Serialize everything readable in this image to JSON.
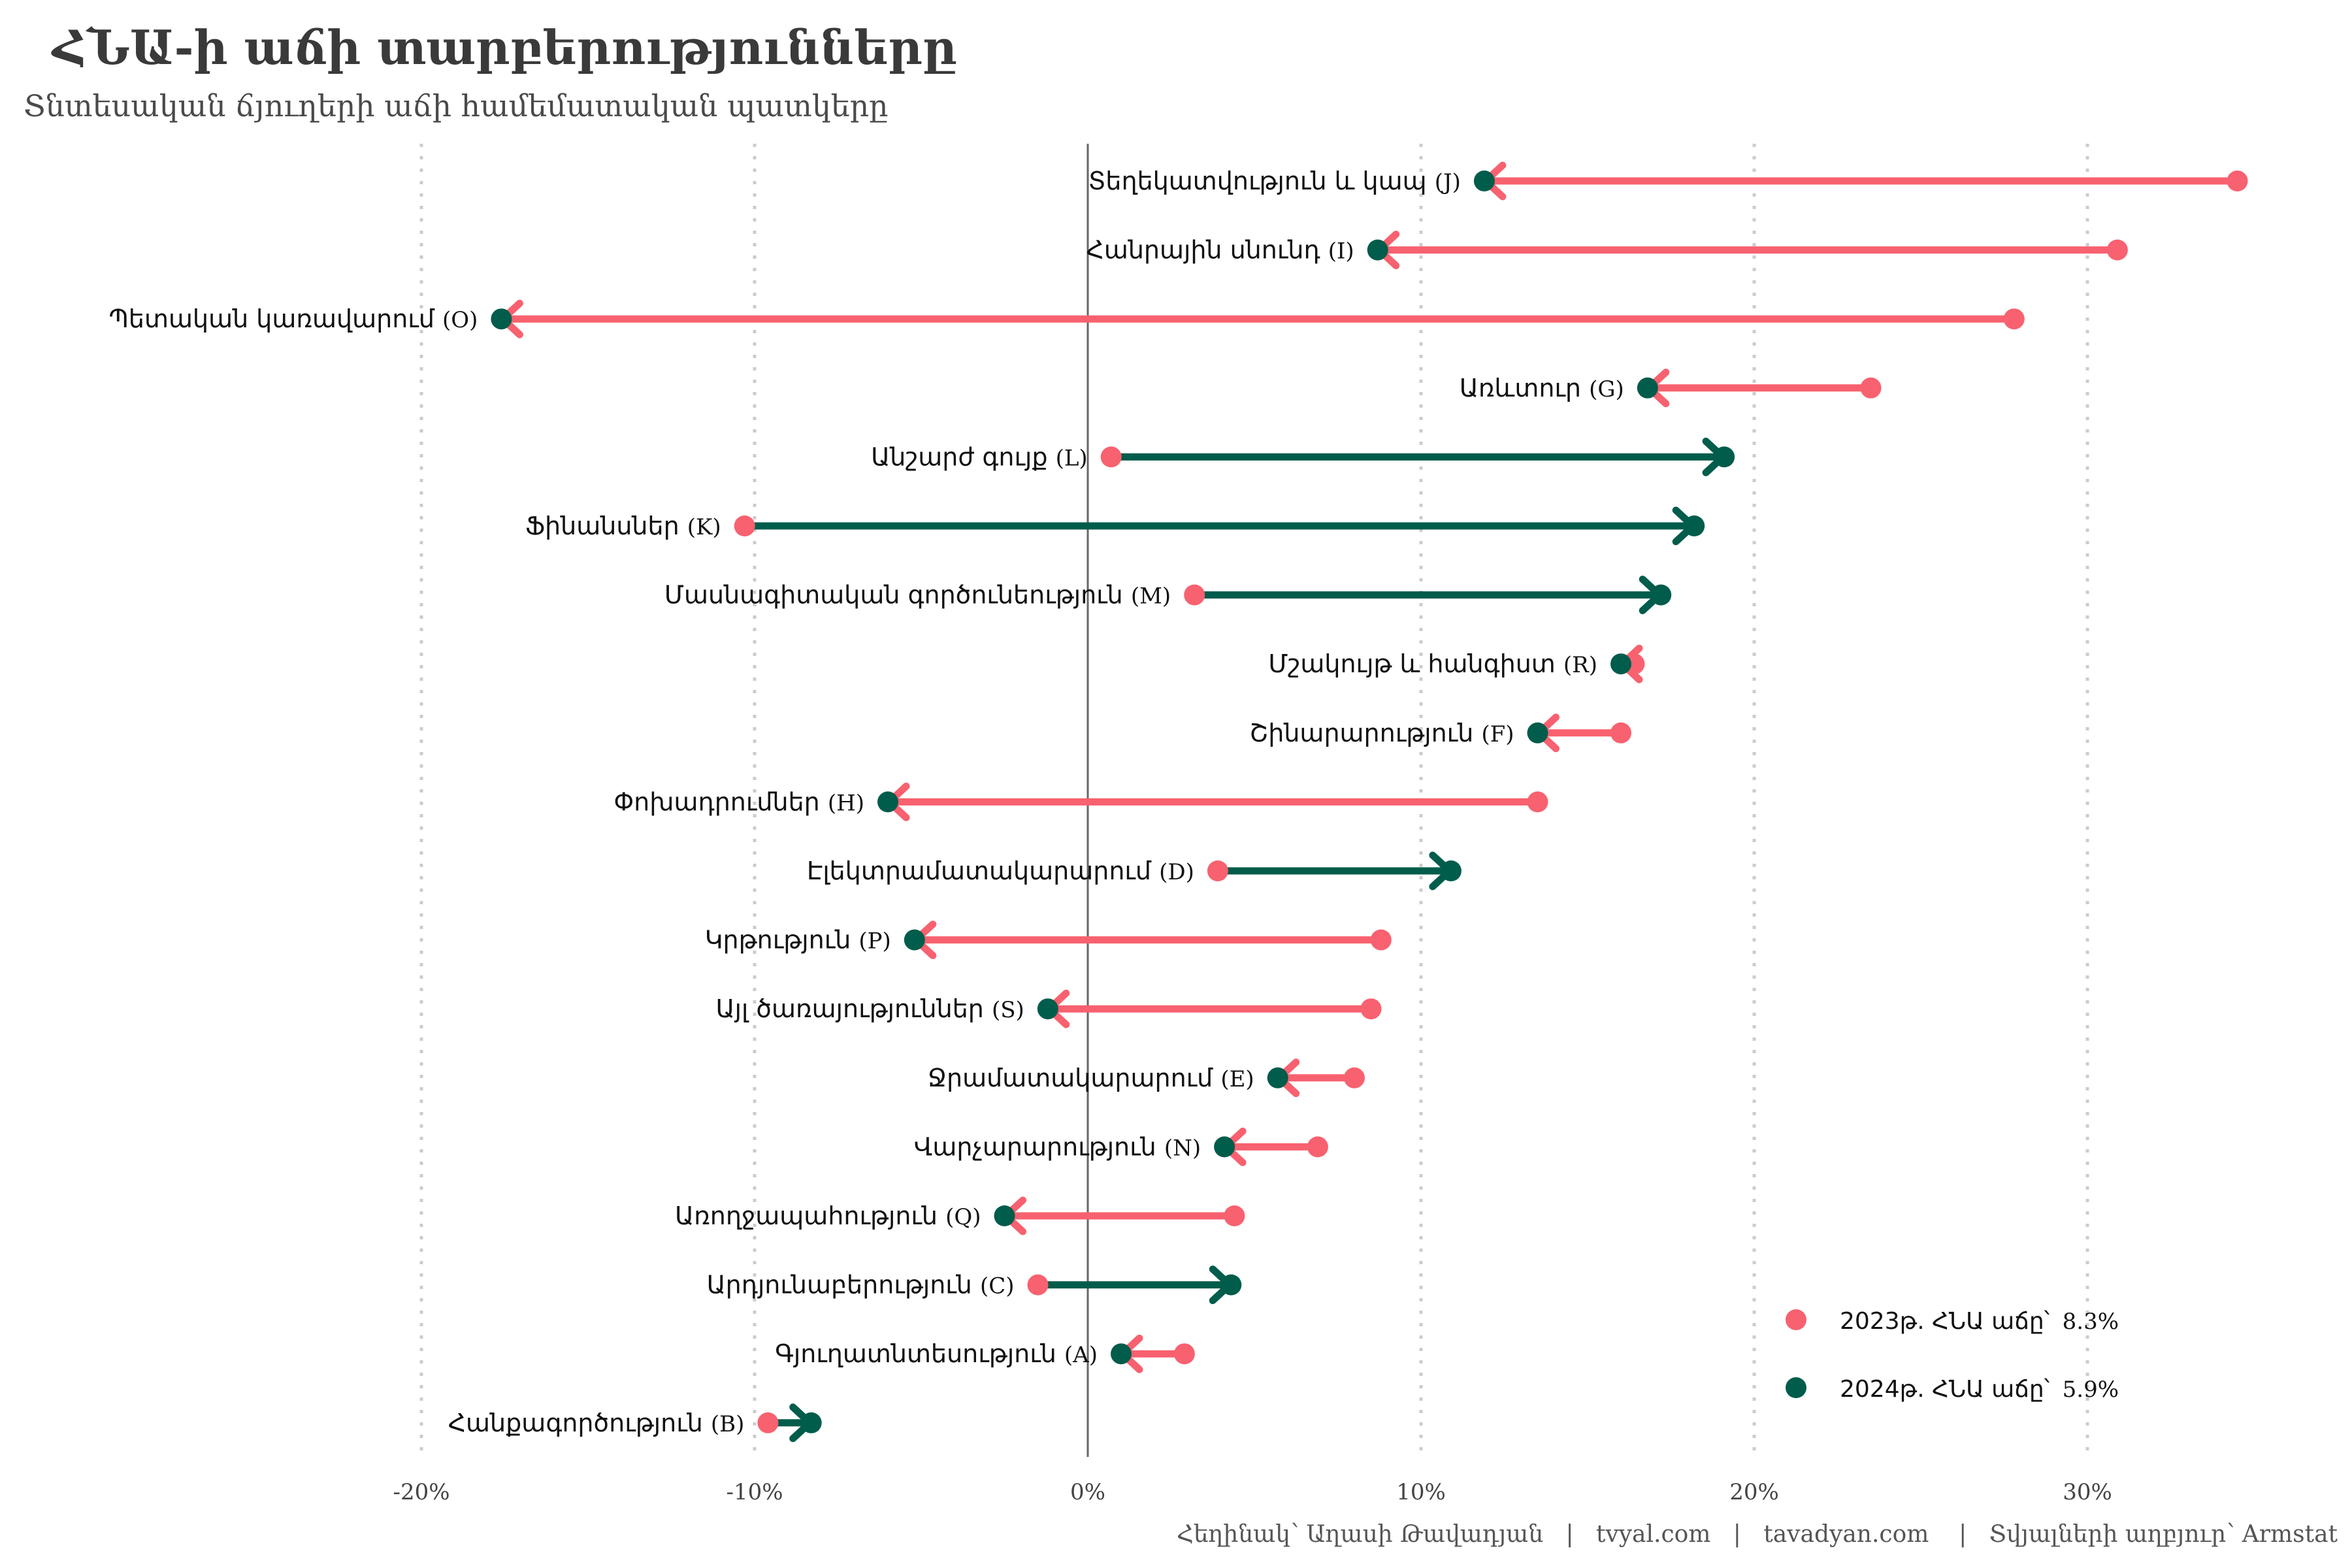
{
  "chart_data": {
    "type": "dumbbell",
    "title": "ՀՆԱ-ի աճի տարբերությունները",
    "subtitle": "Տնտեսական ճյուղերի աճի համեմատական պատկերը",
    "xlabel": "",
    "ylabel": "",
    "xlim": [
      -20,
      35
    ],
    "x_ticks": [
      -20,
      -10,
      0,
      10,
      20,
      30
    ],
    "x_tick_labels": [
      "-20%",
      "-10%",
      "0%",
      "10%",
      "20%",
      "30%"
    ],
    "grid": "vertical-dotted",
    "legend_position": "bottom-right",
    "colors": {
      "y2023": "#F8616F",
      "y2024": "#005C4B",
      "zero_line": "#666666",
      "grid": "#cccccc"
    },
    "series": [
      {
        "name": "2023",
        "legend_label": "2023թ. ՀՆԱ աճը՝",
        "legend_value": "8.3%"
      },
      {
        "name": "2024",
        "legend_label": "2024թ. ՀՆԱ աճը՝",
        "legend_value": "5.9%"
      }
    ],
    "categories": [
      {
        "label": "Տեղեկատվություն և կապ",
        "code": "(J)",
        "y2023": 34.5,
        "y2024": 11.9
      },
      {
        "label": "Հանրային սնունդ",
        "code": "(I)",
        "y2023": 30.9,
        "y2024": 8.7
      },
      {
        "label": "Պետական կառավարում",
        "code": "(O)",
        "y2023": 27.8,
        "y2024": -17.6
      },
      {
        "label": "Առևտուր",
        "code": "(G)",
        "y2023": 23.5,
        "y2024": 16.8
      },
      {
        "label": "Անշարժ գույք",
        "code": "(L)",
        "y2023": 0.7,
        "y2024": 19.1
      },
      {
        "label": "Ֆինանսներ",
        "code": "(K)",
        "y2023": -10.3,
        "y2024": 18.2
      },
      {
        "label": "Մասնագիտական գործունեություն",
        "code": "(M)",
        "y2023": 3.2,
        "y2024": 17.2
      },
      {
        "label": "Մշակույթ և հանգիստ",
        "code": "(R)",
        "y2023": 16.4,
        "y2024": 16.0
      },
      {
        "label": "Շինարարություն",
        "code": "(F)",
        "y2023": 16.0,
        "y2024": 13.5
      },
      {
        "label": "Փոխադրումներ",
        "code": "(H)",
        "y2023": 13.5,
        "y2024": -6.0
      },
      {
        "label": "Էլեկտրամատակարարում",
        "code": "(D)",
        "y2023": 3.9,
        "y2024": 10.9
      },
      {
        "label": "Կրթություն",
        "code": "(P)",
        "y2023": 8.8,
        "y2024": -5.2
      },
      {
        "label": "Այլ ծառայություններ",
        "code": "(S)",
        "y2023": 8.5,
        "y2024": -1.2
      },
      {
        "label": "Ջրամատակարարում",
        "code": "(E)",
        "y2023": 8.0,
        "y2024": 5.7
      },
      {
        "label": "Վարչարարություն",
        "code": "(N)",
        "y2023": 6.9,
        "y2024": 4.1
      },
      {
        "label": "Առողջապահություն",
        "code": "(Q)",
        "y2023": 4.4,
        "y2024": -2.5
      },
      {
        "label": "Արդյունաբերություն",
        "code": "(C)",
        "y2023": -1.5,
        "y2024": 4.3
      },
      {
        "label": "Գյուղատնտեսություն",
        "code": "(A)",
        "y2023": 2.9,
        "y2024": 1.0
      },
      {
        "label": "Հանքագործություն",
        "code": "(B)",
        "y2023": -9.6,
        "y2024": -8.3
      }
    ],
    "caption": "Հեղինակ՝ Աղասի Թավադյան   |   tvyal.com   |   tavadyan.com    |   Տվյալների աղբյուր՝ Armstat"
  }
}
